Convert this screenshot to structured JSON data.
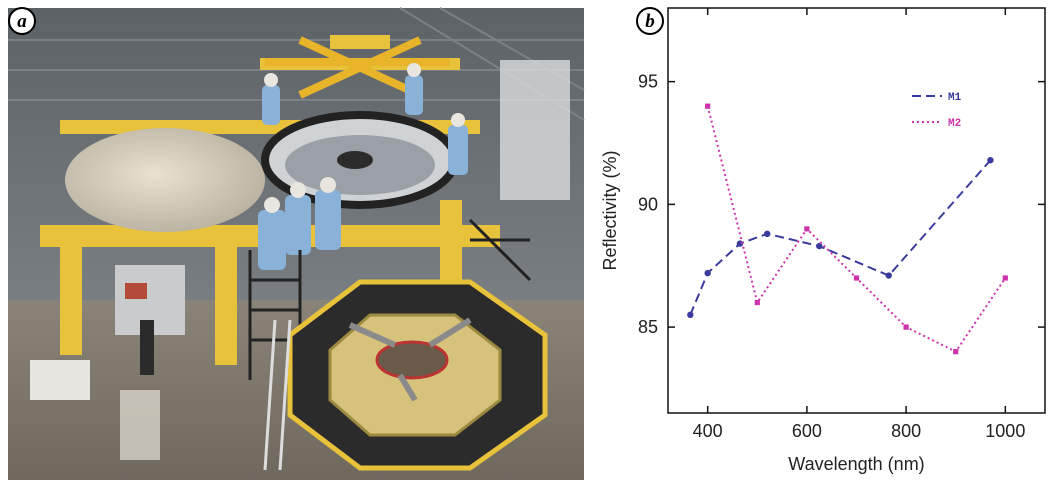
{
  "panels": {
    "photo_label": "a",
    "chart_label": "b"
  },
  "photo": {
    "subject": "mirror-coating-facility-photo"
  },
  "colors": {
    "m1": "#3b3b9e",
    "m2": "#cc33aa",
    "axis": "#111111",
    "frame_yellow": "#e8c23a",
    "platform_dark": "#2b2b2b"
  },
  "chart_data": {
    "type": "line",
    "title": "",
    "xlabel": "Wavelength (nm)",
    "ylabel": "Reflectivity (%)",
    "xlim": [
      320,
      1080
    ],
    "ylim": [
      81.5,
      98
    ],
    "xticks": [
      400,
      600,
      800,
      1000
    ],
    "yticks": [
      85,
      90,
      95
    ],
    "legend_position": "top-right",
    "grid": false,
    "series": [
      {
        "name": "M1",
        "style": "dashed",
        "color": "#3b3b9e",
        "x": [
          365,
          400,
          465,
          520,
          625,
          765,
          970
        ],
        "y": [
          85.5,
          87.2,
          88.4,
          88.8,
          88.3,
          87.1,
          91.8
        ]
      },
      {
        "name": "M2",
        "style": "dotted",
        "color": "#cc33aa",
        "x": [
          400,
          500,
          600,
          700,
          800,
          900,
          1000
        ],
        "y": [
          94.0,
          86.0,
          89.0,
          87.0,
          85.0,
          84.0,
          87.0
        ]
      }
    ]
  }
}
